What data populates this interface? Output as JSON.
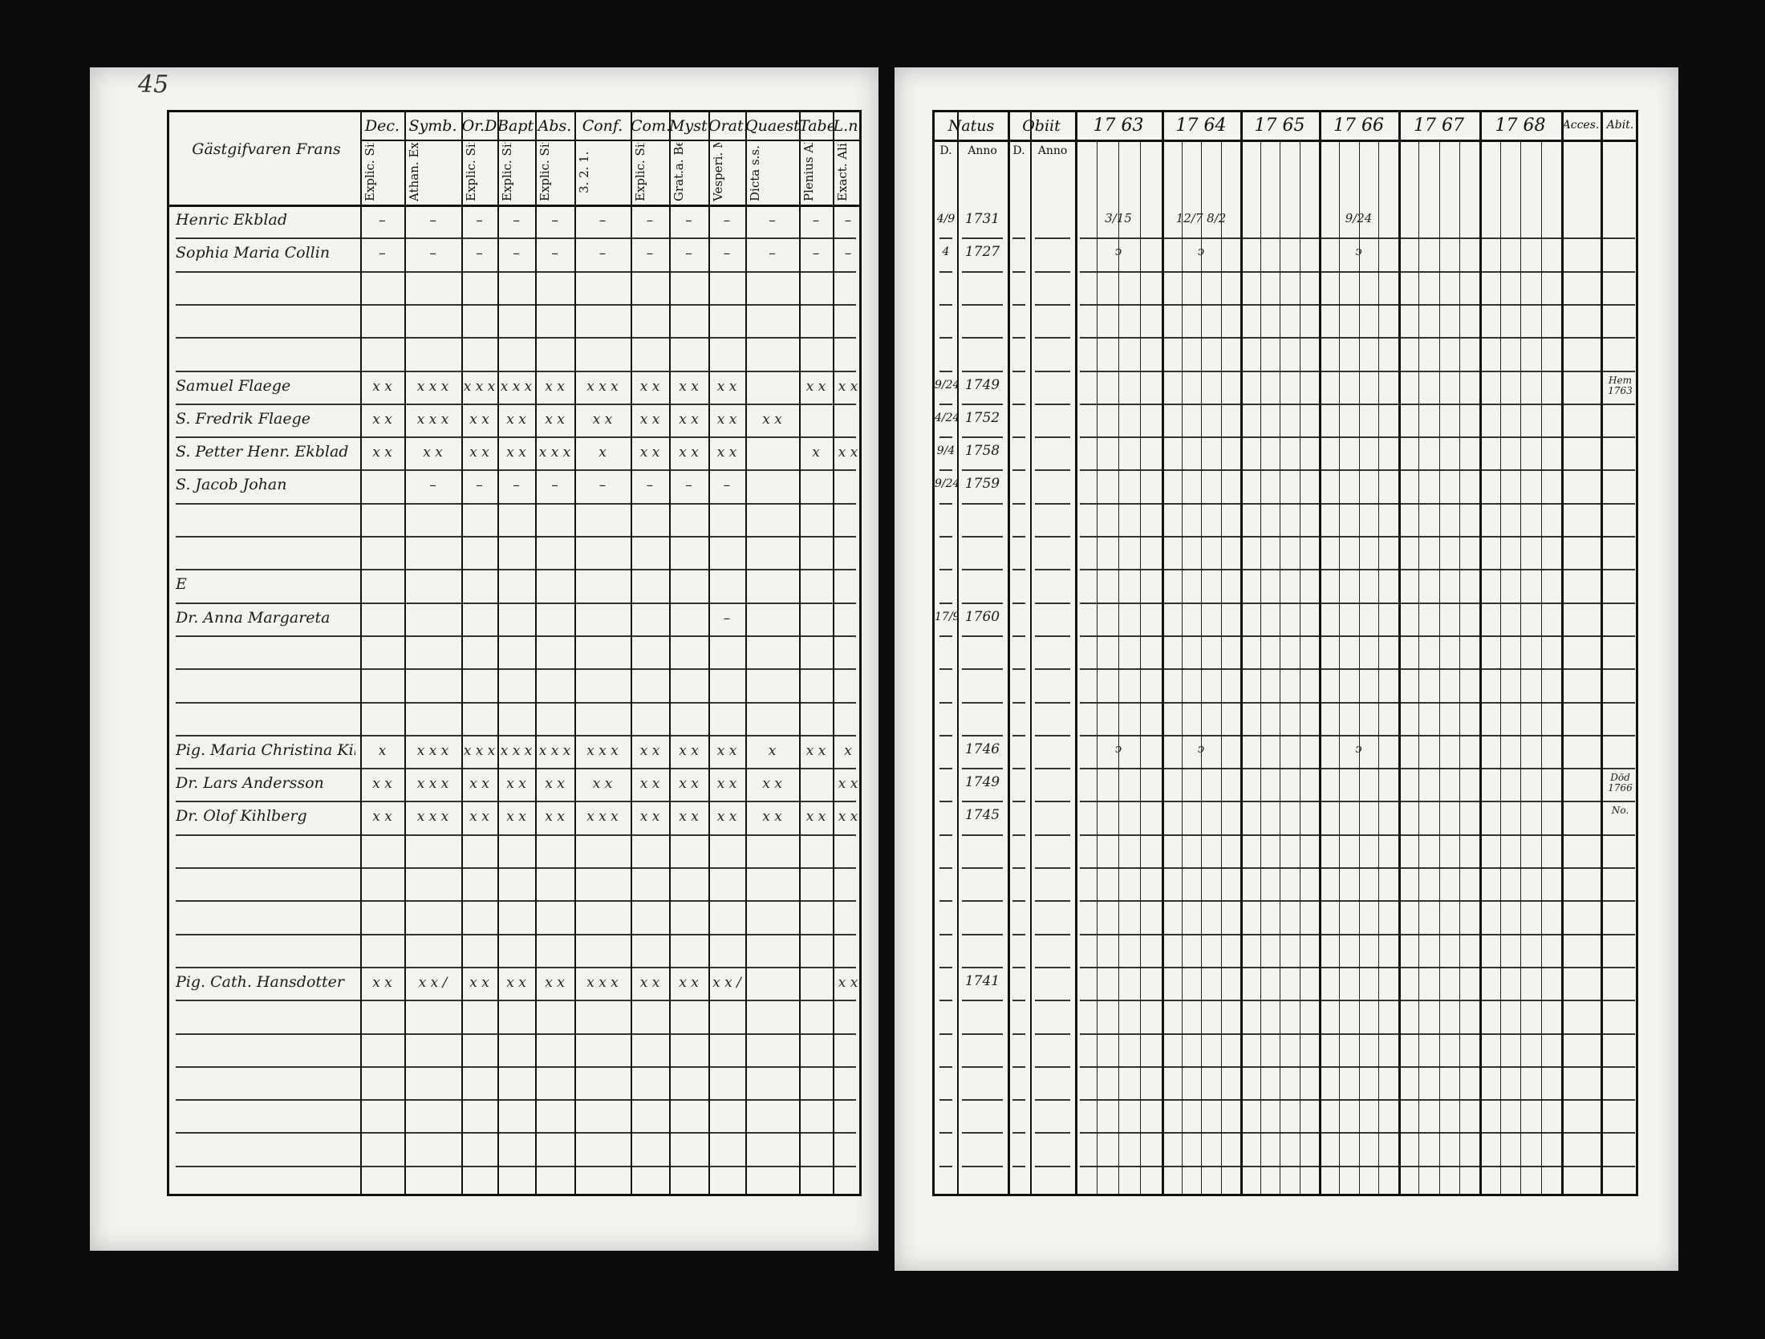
{
  "document": {
    "page_number": "45",
    "household_heading": "Gästgifvaren Frans",
    "left_headers": [
      {
        "top": "Dec.",
        "sub": "Explic. Simpl."
      },
      {
        "top": "Symb.",
        "sub": "Athan. Explic. Simpl."
      },
      {
        "top": "Or.D",
        "sub": "Explic. Simpl."
      },
      {
        "top": "Bapt.",
        "sub": "Explic. Simpl."
      },
      {
        "top": "Abs.",
        "sub": "Explic. Simpl."
      },
      {
        "top": "Conf.",
        "sub": "3. 2. 1."
      },
      {
        "top": "Com.D",
        "sub": "Explic. Simpl."
      },
      {
        "top": "Myst.",
        "sub": "Grat.a. Bened."
      },
      {
        "top": "Orat.",
        "sub": "Vesperi. Matut."
      },
      {
        "top": "Quaest.",
        "sub": "Dicta s.s. Plenius. Alio.m."
      },
      {
        "top": "Tabe.",
        "sub": "Plenius Alio.m."
      },
      {
        "top": "L.n.",
        "sub": "Exact. Alio.m."
      }
    ],
    "right_headers": {
      "natus": "Natus",
      "obiit": "Obiit",
      "natus_d": "D.",
      "natus_anno": "Anno",
      "obiit_d": "D.",
      "obiit_anno": "Anno",
      "years": [
        "17 63",
        "17 64",
        "17 65",
        "17 66",
        "17 67",
        "17 68"
      ],
      "accessit": "Acces.",
      "abiit": "Abit."
    },
    "rows": [
      {
        "name": "Henric Ekblad",
        "marks": [
          "–",
          "–",
          "–",
          "–",
          "–",
          "–",
          "–",
          "–",
          "–",
          "–",
          "–",
          "–"
        ],
        "d": "4/9",
        "anno": "1731",
        "notes": [
          "3/15",
          "12/7  8/2",
          "",
          "9/24",
          "",
          ""
        ],
        "abit": ""
      },
      {
        "name": "Sophia Maria Collin",
        "marks": [
          "–",
          "–",
          "–",
          "–",
          "–",
          "–",
          "–",
          "–",
          "–",
          "–",
          "–",
          "–"
        ],
        "d": "4",
        "anno": "1727",
        "notes": [
          "ↄ",
          "ↄ",
          "",
          "ↄ",
          "",
          ""
        ],
        "abit": ""
      },
      {
        "name": "",
        "marks": [],
        "d": "",
        "anno": "",
        "notes": [],
        "abit": ""
      },
      {
        "name": "",
        "marks": [],
        "d": "",
        "anno": "",
        "notes": [],
        "abit": ""
      },
      {
        "name": "",
        "marks": [],
        "d": "",
        "anno": "",
        "notes": [],
        "abit": ""
      },
      {
        "name": "Samuel Flaege",
        "marks": [
          "x x",
          "x x x",
          "x x x",
          "x x x",
          "x x",
          "x x x",
          "x x",
          "x x",
          "x x",
          "",
          "x x",
          "x x"
        ],
        "d": "9/24",
        "anno": "1749",
        "notes": [],
        "abit": "Hem 1763"
      },
      {
        "name": "S. Fredrik Flaege",
        "marks": [
          "x x",
          "x x x",
          "x x",
          "x x",
          "x x",
          "x x",
          "x x",
          "x x",
          "x x",
          "x x",
          "",
          ""
        ],
        "d": "4/24",
        "anno": "1752",
        "notes": [],
        "abit": ""
      },
      {
        "name": "S. Petter Henr. Ekblad",
        "marks": [
          "x x",
          "x x",
          "x x",
          "x x",
          "x x x",
          "x",
          "x x",
          "x x",
          "x x",
          "",
          "x",
          "x x"
        ],
        "d": "9/4",
        "anno": "1758",
        "notes": [],
        "abit": ""
      },
      {
        "name": "S. Jacob Johan",
        "marks": [
          "",
          "–",
          "–",
          "–",
          "–",
          "–",
          "–",
          "–",
          "–",
          "",
          "",
          ""
        ],
        "d": "9/24",
        "anno": "1759",
        "notes": [],
        "abit": ""
      },
      {
        "name": "",
        "marks": [],
        "d": "",
        "anno": "",
        "notes": [],
        "abit": ""
      },
      {
        "name": "",
        "marks": [],
        "d": "",
        "anno": "",
        "notes": [],
        "abit": ""
      },
      {
        "name": "E",
        "marks": [],
        "d": "",
        "anno": "",
        "notes": [],
        "abit": ""
      },
      {
        "name": "Dr. Anna Margareta",
        "marks": [
          "",
          "",
          "",
          "",
          "",
          "",
          "",
          "",
          "–",
          "",
          "",
          ""
        ],
        "d": "17/9",
        "anno": "1760",
        "notes": [],
        "abit": ""
      },
      {
        "name": "",
        "marks": [],
        "d": "",
        "anno": "",
        "notes": [],
        "abit": ""
      },
      {
        "name": "",
        "marks": [],
        "d": "",
        "anno": "",
        "notes": [],
        "abit": ""
      },
      {
        "name": "",
        "marks": [],
        "d": "",
        "anno": "",
        "notes": [],
        "abit": ""
      },
      {
        "name": "Pig. Maria Christina Kihlberg",
        "marks": [
          "x",
          "x x x",
          "x x x",
          "x x x",
          "x x x",
          "x x x",
          "x x",
          "x x",
          "x x",
          "x",
          "x x",
          "x"
        ],
        "d": "",
        "anno": "1746",
        "notes": [
          "ↄ",
          "ↄ",
          "",
          "ↄ",
          "",
          ""
        ],
        "abit": ""
      },
      {
        "name": "Dr. Lars Andersson",
        "marks": [
          "x x",
          "x x x",
          "x x",
          "x x",
          "x x",
          "x x",
          "x x",
          "x x",
          "x x",
          "x x",
          "",
          "x x"
        ],
        "d": "",
        "anno": "1749",
        "notes": [],
        "abit": "Död 1766"
      },
      {
        "name": "Dr. Olof Kihlberg",
        "marks": [
          "x x",
          "x x x",
          "x x",
          "x x",
          "x x",
          "x x x",
          "x x",
          "x x",
          "x x",
          "x x",
          "x x",
          "x x"
        ],
        "d": "",
        "anno": "1745",
        "notes": [],
        "abit": "No."
      },
      {
        "name": "",
        "marks": [],
        "d": "",
        "anno": "",
        "notes": [],
        "abit": ""
      },
      {
        "name": "",
        "marks": [],
        "d": "",
        "anno": "",
        "notes": [],
        "abit": ""
      },
      {
        "name": "",
        "marks": [],
        "d": "",
        "anno": "",
        "notes": [],
        "abit": ""
      },
      {
        "name": "",
        "marks": [],
        "d": "",
        "anno": "",
        "notes": [],
        "abit": ""
      },
      {
        "name": "Pig. Cath. Hansdotter",
        "marks": [
          "x x",
          "x x /",
          "x x",
          "x x",
          "x x",
          "x x x",
          "x x",
          "x x",
          "x x /",
          "",
          "",
          "x x"
        ],
        "d": "",
        "anno": "1741",
        "notes": [],
        "abit": ""
      },
      {
        "name": "",
        "marks": [],
        "d": "",
        "anno": "",
        "notes": [],
        "abit": ""
      },
      {
        "name": "",
        "marks": [],
        "d": "",
        "anno": "",
        "notes": [],
        "abit": ""
      },
      {
        "name": "",
        "marks": [],
        "d": "",
        "anno": "",
        "notes": [],
        "abit": ""
      },
      {
        "name": "",
        "marks": [],
        "d": "",
        "anno": "",
        "notes": [],
        "abit": ""
      },
      {
        "name": "",
        "marks": [],
        "d": "",
        "anno": "",
        "notes": [],
        "abit": ""
      },
      {
        "name": "",
        "marks": [],
        "d": "",
        "anno": "",
        "notes": [],
        "abit": ""
      }
    ]
  }
}
